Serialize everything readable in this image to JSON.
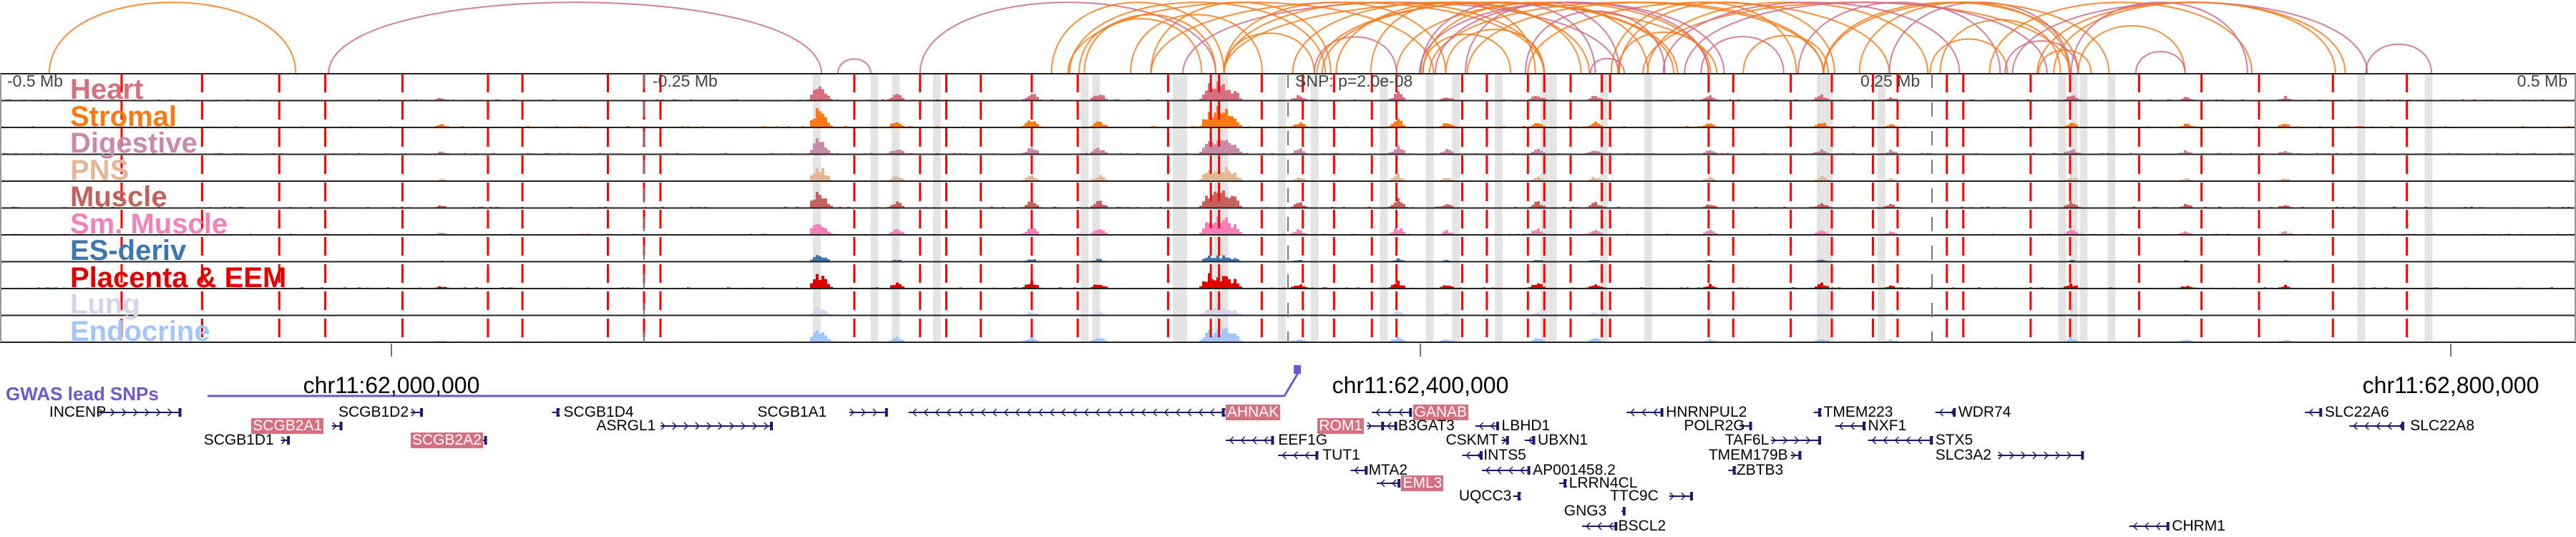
{
  "axis": {
    "left_label": "-0.5 Mb",
    "mid_left_label": "-0.25 Mb",
    "snp_label": "SNP: p=2.0e-08",
    "mid_right_label": "0.25 Mb",
    "right_label": "0.5 Mb"
  },
  "tracks": [
    {
      "name": "Heart",
      "color": "#d6707e"
    },
    {
      "name": "Stromal",
      "color": "#fb7a14"
    },
    {
      "name": "Digestive",
      "color": "#c98aaa"
    },
    {
      "name": "PNS",
      "color": "#e2b897"
    },
    {
      "name": "Muscle",
      "color": "#c4625e"
    },
    {
      "name": "Sm. Muscle",
      "color": "#f282b8"
    },
    {
      "name": "ES-deriv",
      "color": "#3e76ae"
    },
    {
      "name": "Placenta & EEM",
      "color": "#e00000"
    },
    {
      "name": "Lung",
      "color": "#d9d2ea"
    },
    {
      "name": "Endocrine",
      "color": "#a3c6fa"
    }
  ],
  "coordinates": [
    "chr11:62,000,000",
    "chr11:62,400,000",
    "chr11:62,800,000"
  ],
  "gwas_label": "GWAS lead SNPs",
  "colors": {
    "gwas": "#6a5acd",
    "gene": "#1a1a6e",
    "highlight": "#d6707e",
    "marker": "#ff0000",
    "arc_orange": "#f77b1c",
    "arc_pink": "#cc6a86"
  },
  "genes": [
    {
      "name": "INCENP",
      "strand": "+"
    },
    {
      "name": "SCGB1D2",
      "strand": "+"
    },
    {
      "name": "SCGB1D4",
      "strand": "-"
    },
    {
      "name": "SCGB1A1",
      "strand": "+"
    },
    {
      "name": "AHNAK",
      "strand": "-",
      "highlight": true
    },
    {
      "name": "GANAB",
      "strand": "-",
      "highlight": true
    },
    {
      "name": "HNRNPUL2",
      "strand": "-"
    },
    {
      "name": "TMEM223",
      "strand": "-"
    },
    {
      "name": "WDR74",
      "strand": "-"
    },
    {
      "name": "SLC22A6",
      "strand": "-"
    },
    {
      "name": "SCGB2A1",
      "strand": "+",
      "highlight": true
    },
    {
      "name": "ASRGL1",
      "strand": "+"
    },
    {
      "name": "ROM1",
      "strand": "+",
      "highlight": true
    },
    {
      "name": "B3GAT3",
      "strand": "-"
    },
    {
      "name": "LBHD1",
      "strand": "-"
    },
    {
      "name": "POLR2G",
      "strand": "+"
    },
    {
      "name": "NXF1",
      "strand": "-"
    },
    {
      "name": "SLC22A8",
      "strand": "-"
    },
    {
      "name": "SCGB1D1",
      "strand": "+"
    },
    {
      "name": "SCGB2A2",
      "strand": "+",
      "highlight": true
    },
    {
      "name": "EEF1G",
      "strand": "-"
    },
    {
      "name": "CSKMT",
      "strand": "+"
    },
    {
      "name": "UBXN1",
      "strand": "-"
    },
    {
      "name": "TAF6L",
      "strand": "+"
    },
    {
      "name": "STX5",
      "strand": "-"
    },
    {
      "name": "TUT1",
      "strand": "-"
    },
    {
      "name": "INTS5",
      "strand": "-"
    },
    {
      "name": "TMEM179B",
      "strand": "+"
    },
    {
      "name": "SLC3A2",
      "strand": "+"
    },
    {
      "name": "MTA2",
      "strand": "-"
    },
    {
      "name": "AP001458.2",
      "strand": "-"
    },
    {
      "name": "ZBTB3",
      "strand": "-"
    },
    {
      "name": "EML3",
      "strand": "-",
      "highlight": true
    },
    {
      "name": "LRRN4CL",
      "strand": "-"
    },
    {
      "name": "UQCC3",
      "strand": "-"
    },
    {
      "name": "TTC9C",
      "strand": "+"
    },
    {
      "name": "GNG3",
      "strand": "+"
    },
    {
      "name": "BSCL2",
      "strand": "-"
    },
    {
      "name": "CHRM1",
      "strand": "-"
    }
  ]
}
